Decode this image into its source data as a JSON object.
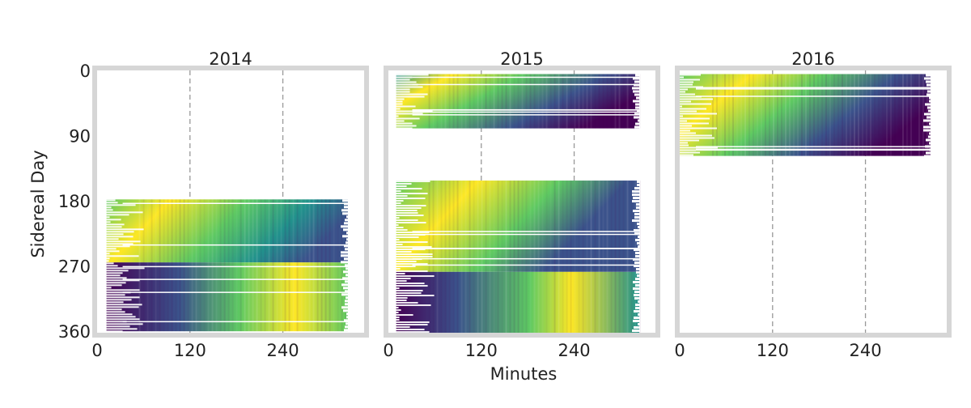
{
  "figure": {
    "xlabel": "Minutes",
    "ylabel": "Sidereal Day"
  },
  "chart_data": [
    {
      "type": "heatmap",
      "title": "2014",
      "xlim": [
        0,
        345
      ],
      "ylim": [
        362,
        0
      ],
      "xticks": [
        0,
        120,
        240
      ],
      "yticks": [
        0,
        90,
        180,
        270,
        360
      ],
      "grid": false,
      "reference_lines_x": [
        120,
        240
      ],
      "data_extent": {
        "x": [
          10,
          345
        ],
        "y": [
          178,
          360
        ]
      },
      "colormap": "viridis",
      "legend": "none"
    },
    {
      "type": "heatmap",
      "title": "2015",
      "xlim": [
        0,
        345
      ],
      "ylim": [
        362,
        0
      ],
      "xticks": [
        0,
        120,
        240
      ],
      "yticks": [],
      "grid": false,
      "reference_lines_x": [
        120,
        240
      ],
      "data_extent": [
        {
          "x": [
            10,
            345
          ],
          "y": [
            5,
            80
          ]
        },
        {
          "x": [
            10,
            345
          ],
          "y": [
            152,
            362
          ]
        }
      ],
      "colormap": "viridis",
      "legend": "none"
    },
    {
      "type": "heatmap",
      "title": "2016",
      "xlim": [
        0,
        345
      ],
      "ylim": [
        362,
        0
      ],
      "xticks": [
        0,
        120,
        240
      ],
      "yticks": [],
      "grid": false,
      "reference_lines_x": [
        120,
        240
      ],
      "data_extent": {
        "x": [
          0,
          345
        ],
        "y": [
          5,
          118
        ]
      },
      "colormap": "viridis",
      "legend": "none"
    }
  ],
  "colors": {
    "frame": "#d6d6d6",
    "refline": "#999999",
    "viridis": [
      "#440154",
      "#3b528b",
      "#21918c",
      "#5ec962",
      "#fde725"
    ]
  }
}
